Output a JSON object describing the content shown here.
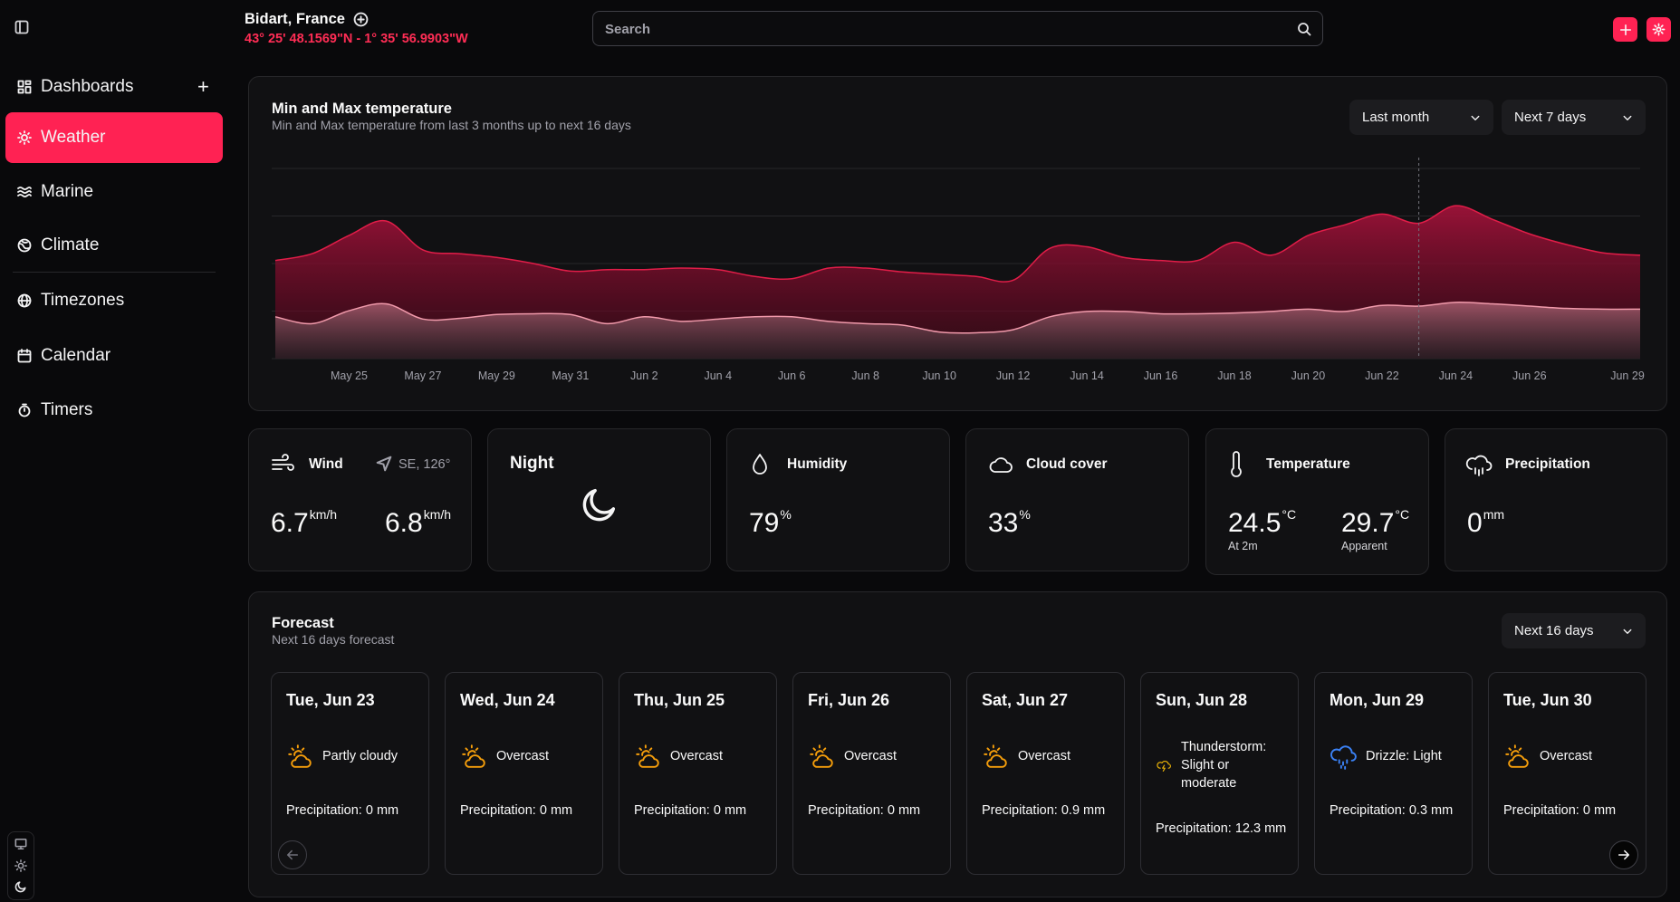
{
  "header": {
    "location": "Bidart, France",
    "coordinates": "43° 25' 48.1569\"N - 1° 35' 56.9903\"W",
    "search_placeholder": "Search"
  },
  "sidebar": {
    "items": [
      "Dashboards",
      "Weather",
      "Marine",
      "Climate",
      "Timezones",
      "Calendar",
      "Timers"
    ]
  },
  "chart_controls": {
    "range_past": "Last month",
    "range_future": "Next 7 days"
  },
  "chart_data": {
    "type": "area",
    "title": "Min and Max temperature",
    "subtitle": "Min and Max temperature from last 3 months up to next 16 days",
    "categories": [
      null,
      null,
      "May 25",
      null,
      "May 27",
      null,
      "May 29",
      null,
      "May 31",
      null,
      "Jun 2",
      null,
      "Jun 4",
      null,
      "Jun 6",
      null,
      "Jun 8",
      null,
      "Jun 10",
      null,
      "Jun 12",
      null,
      "Jun 14",
      null,
      "Jun 16",
      null,
      "Jun 18",
      null,
      "Jun 20",
      null,
      "Jun 22",
      null,
      "Jun 24",
      null,
      "Jun 26",
      null,
      null,
      "Jun 29"
    ],
    "series": [
      {
        "color": "#e11d48",
        "values": [
          22.9,
          23.8,
          26.2,
          28.1,
          24.3,
          23.8,
          23.3,
          22.5,
          21.5,
          21.7,
          21.7,
          21.9,
          21.7,
          20.8,
          20.5,
          21.9,
          21.9,
          21.4,
          21.1,
          20.8,
          20.3,
          24.5,
          24.7,
          23.3,
          22.9,
          22.9,
          25.3,
          23.6,
          26.2,
          27.6,
          29.0,
          27.8,
          30.1,
          28.3,
          26.4,
          25.0,
          23.9,
          23.6
        ]
      },
      {
        "color": "#f19aab",
        "values": [
          15.5,
          14.6,
          16.3,
          17.2,
          15.2,
          15.3,
          15.8,
          15.9,
          15.8,
          14.6,
          15.5,
          14.9,
          15.2,
          15.5,
          15.5,
          14.9,
          14.6,
          14.4,
          13.5,
          13.4,
          13.8,
          15.5,
          16.2,
          16.2,
          15.9,
          15.9,
          16.0,
          16.2,
          16.5,
          16.2,
          17.0,
          16.9,
          17.4,
          17.2,
          16.9,
          16.6,
          16.5,
          16.5
        ]
      }
    ],
    "ylim": [
      10,
      35
    ],
    "grid": true
  },
  "stats": {
    "wind": {
      "label": "Wind",
      "direction": "SE, 126°",
      "speed": "6.7",
      "gusts": "6.8",
      "unit": "km/h"
    },
    "night": {
      "label": "Night"
    },
    "humidity": {
      "label": "Humidity",
      "value": "79",
      "unit": "%"
    },
    "cloud": {
      "label": "Cloud cover",
      "value": "33",
      "unit": "%"
    },
    "temperature": {
      "label": "Temperature",
      "value": "24.5",
      "unit": "°C",
      "sub": "At 2m",
      "apparent": "29.7",
      "apparent_unit": "°C",
      "apparent_sub": "Apparent"
    },
    "precipitation": {
      "label": "Precipitation",
      "value": "0",
      "unit": "mm"
    }
  },
  "forecast": {
    "title": "Forecast",
    "subtitle": "Next 16 days forecast",
    "range": "Next 16 days",
    "days": [
      {
        "date": "Tue, Jun 23",
        "condition": "Partly cloudy",
        "precipitation": "Precipitation: 0 mm",
        "icon": "sun-cloud",
        "icon_color": "#f59e0b"
      },
      {
        "date": "Wed, Jun 24",
        "condition": "Overcast",
        "precipitation": "Precipitation: 0 mm",
        "icon": "sun-cloud",
        "icon_color": "#f59e0b"
      },
      {
        "date": "Thu, Jun 25",
        "condition": "Overcast",
        "precipitation": "Precipitation: 0 mm",
        "icon": "sun-cloud",
        "icon_color": "#f59e0b"
      },
      {
        "date": "Fri, Jun 26",
        "condition": "Overcast",
        "precipitation": "Precipitation: 0 mm",
        "icon": "sun-cloud",
        "icon_color": "#f59e0b"
      },
      {
        "date": "Sat, Jun 27",
        "condition": "Overcast",
        "precipitation": "Precipitation: 0.9 mm",
        "icon": "sun-cloud",
        "icon_color": "#f59e0b"
      },
      {
        "date": "Sun, Jun 28",
        "condition": "Thunderstorm: Slight or moderate",
        "precipitation": "Precipitation: 12.3 mm",
        "icon": "cloud-lightning",
        "icon_color": "#eab308"
      },
      {
        "date": "Mon, Jun 29",
        "condition": "Drizzle: Light",
        "precipitation": "Precipitation: 0.3 mm",
        "icon": "cloud-drizzle",
        "icon_color": "#3b82f6"
      },
      {
        "date": "Tue, Jun 30",
        "condition": "Overcast",
        "precipitation": "Precipitation: 0 mm",
        "icon": "sun-cloud",
        "icon_color": "#f59e0b"
      }
    ]
  }
}
